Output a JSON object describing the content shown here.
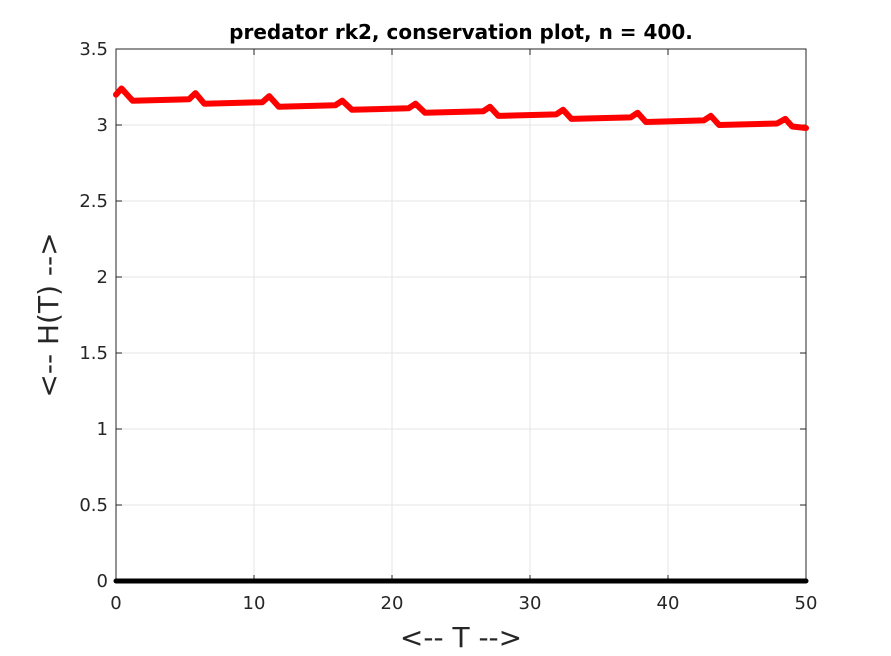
{
  "chart_data": {
    "type": "line",
    "title": "predator rk2, conservation plot, n = 400.",
    "xlabel": "<-- T -->",
    "ylabel": "<-- H(T) -->",
    "xlim": [
      0,
      50
    ],
    "ylim": [
      0,
      3.5
    ],
    "xticks": [
      0,
      10,
      20,
      30,
      40,
      50
    ],
    "xtick_labels": [
      "0",
      "10",
      "20",
      "30",
      "40",
      "50"
    ],
    "yticks": [
      0,
      0.5,
      1,
      1.5,
      2,
      2.5,
      3,
      3.5
    ],
    "ytick_labels": [
      "0",
      "0.5",
      "1",
      "1.5",
      "2",
      "2.5",
      "3",
      "3.5"
    ],
    "grid": true,
    "series": [
      {
        "color": "#ff0000",
        "period": 5.35,
        "peak_t": 0.4,
        "start_value": 3.2,
        "x": [
          0,
          0.4,
          1.2,
          5.3,
          5.75,
          6.4,
          10.6,
          11.1,
          11.8,
          15.9,
          16.4,
          17.1,
          21.2,
          21.7,
          22.4,
          26.6,
          27.1,
          27.7,
          31.9,
          32.4,
          33.0,
          37.3,
          37.8,
          38.4,
          42.6,
          43.1,
          43.7,
          47.9,
          48.5,
          49.0,
          50
        ],
        "values": [
          3.2,
          3.24,
          3.16,
          3.17,
          3.21,
          3.14,
          3.15,
          3.19,
          3.12,
          3.13,
          3.16,
          3.1,
          3.11,
          3.14,
          3.08,
          3.09,
          3.12,
          3.06,
          3.07,
          3.1,
          3.04,
          3.05,
          3.08,
          3.02,
          3.03,
          3.06,
          3.0,
          3.01,
          3.04,
          2.99,
          2.98
        ]
      },
      {
        "color": "#000000",
        "x": [
          0,
          50
        ],
        "values": [
          0,
          0
        ]
      }
    ]
  }
}
